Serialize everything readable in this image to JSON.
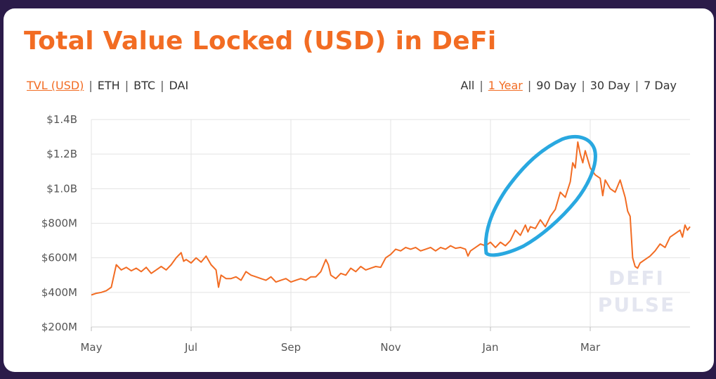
{
  "title": "Total Value Locked (USD) in DeFi",
  "currency_toggles": [
    {
      "label": "TVL (USD)",
      "active": true
    },
    {
      "label": "ETH",
      "active": false
    },
    {
      "label": "BTC",
      "active": false
    },
    {
      "label": "DAI",
      "active": false
    }
  ],
  "range_toggles": [
    {
      "label": "All",
      "active": false
    },
    {
      "label": "1 Year",
      "active": true
    },
    {
      "label": "90 Day",
      "active": false
    },
    {
      "label": "30 Day",
      "active": false
    },
    {
      "label": "7 Day",
      "active": false
    }
  ],
  "separator": "|",
  "watermark": [
    "DEFI",
    "PULSE"
  ],
  "colors": {
    "line": "#f26c23",
    "annotation": "#29a8e0",
    "accent": "#f26c23"
  },
  "chart_data": {
    "type": "line",
    "grid": true,
    "ylim": [
      200,
      1400
    ],
    "y_ticks": [
      {
        "value": 200,
        "label": "$200M"
      },
      {
        "value": 400,
        "label": "$400M"
      },
      {
        "value": 600,
        "label": "$600M"
      },
      {
        "value": 800,
        "label": "$800M"
      },
      {
        "value": 1000,
        "label": "$1.0B"
      },
      {
        "value": 1200,
        "label": "$1.2B"
      },
      {
        "value": 1400,
        "label": "$1.4B"
      }
    ],
    "x_range": [
      0,
      12
    ],
    "x_ticks": [
      {
        "value": 0,
        "label": "May"
      },
      {
        "value": 2,
        "label": "Jul"
      },
      {
        "value": 4,
        "label": "Sep"
      },
      {
        "value": 6,
        "label": "Nov"
      },
      {
        "value": 8,
        "label": "Jan"
      },
      {
        "value": 10,
        "label": "Mar"
      }
    ],
    "series": [
      {
        "values": [
          [
            0.0,
            385
          ],
          [
            0.1,
            395
          ],
          [
            0.2,
            400
          ],
          [
            0.3,
            410
          ],
          [
            0.4,
            430
          ],
          [
            0.5,
            560
          ],
          [
            0.6,
            530
          ],
          [
            0.7,
            545
          ],
          [
            0.8,
            525
          ],
          [
            0.9,
            540
          ],
          [
            1.0,
            520
          ],
          [
            1.1,
            545
          ],
          [
            1.2,
            510
          ],
          [
            1.3,
            530
          ],
          [
            1.4,
            550
          ],
          [
            1.5,
            530
          ],
          [
            1.6,
            560
          ],
          [
            1.7,
            600
          ],
          [
            1.8,
            630
          ],
          [
            1.85,
            580
          ],
          [
            1.9,
            590
          ],
          [
            2.0,
            570
          ],
          [
            2.1,
            600
          ],
          [
            2.2,
            575
          ],
          [
            2.3,
            610
          ],
          [
            2.4,
            560
          ],
          [
            2.5,
            530
          ],
          [
            2.55,
            430
          ],
          [
            2.6,
            500
          ],
          [
            2.7,
            480
          ],
          [
            2.8,
            480
          ],
          [
            2.9,
            490
          ],
          [
            3.0,
            470
          ],
          [
            3.1,
            520
          ],
          [
            3.2,
            500
          ],
          [
            3.3,
            490
          ],
          [
            3.4,
            480
          ],
          [
            3.5,
            470
          ],
          [
            3.6,
            490
          ],
          [
            3.7,
            460
          ],
          [
            3.8,
            470
          ],
          [
            3.9,
            480
          ],
          [
            4.0,
            460
          ],
          [
            4.1,
            470
          ],
          [
            4.2,
            480
          ],
          [
            4.3,
            470
          ],
          [
            4.4,
            490
          ],
          [
            4.5,
            490
          ],
          [
            4.6,
            520
          ],
          [
            4.7,
            590
          ],
          [
            4.75,
            560
          ],
          [
            4.8,
            500
          ],
          [
            4.9,
            480
          ],
          [
            5.0,
            510
          ],
          [
            5.1,
            500
          ],
          [
            5.2,
            540
          ],
          [
            5.3,
            520
          ],
          [
            5.4,
            550
          ],
          [
            5.5,
            530
          ],
          [
            5.6,
            540
          ],
          [
            5.7,
            550
          ],
          [
            5.8,
            545
          ],
          [
            5.9,
            600
          ],
          [
            6.0,
            620
          ],
          [
            6.1,
            650
          ],
          [
            6.2,
            640
          ],
          [
            6.3,
            660
          ],
          [
            6.4,
            650
          ],
          [
            6.5,
            660
          ],
          [
            6.6,
            640
          ],
          [
            6.7,
            650
          ],
          [
            6.8,
            660
          ],
          [
            6.9,
            640
          ],
          [
            7.0,
            660
          ],
          [
            7.1,
            650
          ],
          [
            7.2,
            670
          ],
          [
            7.3,
            655
          ],
          [
            7.4,
            660
          ],
          [
            7.5,
            650
          ],
          [
            7.55,
            610
          ],
          [
            7.6,
            640
          ],
          [
            7.7,
            660
          ],
          [
            7.8,
            680
          ],
          [
            7.9,
            670
          ],
          [
            8.0,
            690
          ],
          [
            8.1,
            660
          ],
          [
            8.2,
            690
          ],
          [
            8.3,
            670
          ],
          [
            8.4,
            700
          ],
          [
            8.5,
            760
          ],
          [
            8.6,
            730
          ],
          [
            8.7,
            790
          ],
          [
            8.75,
            750
          ],
          [
            8.8,
            780
          ],
          [
            8.9,
            770
          ],
          [
            9.0,
            820
          ],
          [
            9.1,
            780
          ],
          [
            9.2,
            840
          ],
          [
            9.3,
            880
          ],
          [
            9.4,
            980
          ],
          [
            9.5,
            950
          ],
          [
            9.6,
            1040
          ],
          [
            9.65,
            1150
          ],
          [
            9.7,
            1120
          ],
          [
            9.75,
            1270
          ],
          [
            9.8,
            1200
          ],
          [
            9.85,
            1150
          ],
          [
            9.9,
            1220
          ],
          [
            10.0,
            1120
          ],
          [
            10.1,
            1080
          ],
          [
            10.2,
            1060
          ],
          [
            10.25,
            960
          ],
          [
            10.3,
            1050
          ],
          [
            10.4,
            1000
          ],
          [
            10.5,
            980
          ],
          [
            10.6,
            1050
          ],
          [
            10.7,
            950
          ],
          [
            10.75,
            870
          ],
          [
            10.8,
            840
          ],
          [
            10.85,
            600
          ],
          [
            10.9,
            550
          ],
          [
            10.95,
            540
          ],
          [
            11.0,
            570
          ],
          [
            11.1,
            590
          ],
          [
            11.2,
            610
          ],
          [
            11.3,
            640
          ],
          [
            11.4,
            680
          ],
          [
            11.5,
            660
          ],
          [
            11.6,
            720
          ],
          [
            11.7,
            740
          ],
          [
            11.8,
            760
          ],
          [
            11.85,
            720
          ],
          [
            11.9,
            790
          ],
          [
            11.95,
            760
          ],
          [
            12.0,
            780
          ]
        ]
      }
    ]
  }
}
